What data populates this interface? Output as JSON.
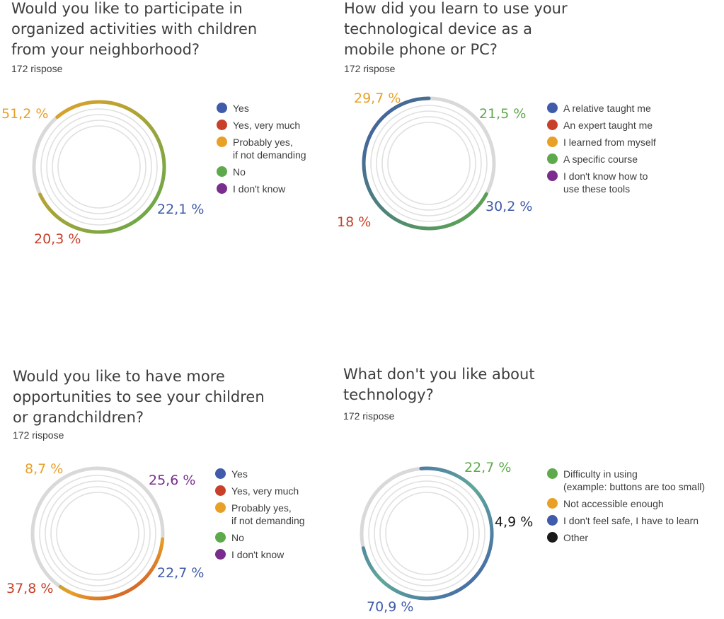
{
  "colors": {
    "blue": "#3f5ba9",
    "red": "#c8402a",
    "orange": "#e8a027",
    "green": "#5ea94b",
    "purple": "#7b2d8e",
    "black": "#1a1a1a",
    "track": "#d9d9d9"
  },
  "chart_data": [
    {
      "type": "pie",
      "title": "Would you like to participate in\norganized activities with children\nfrom your neighborhood?",
      "subtitle": "172 rispose",
      "legend": [
        "Yes",
        "Yes, very much",
        "Probably yes,\nif not demanding",
        "No",
        "I don't know"
      ],
      "legend_colors": [
        "blue",
        "red",
        "orange",
        "green",
        "purple"
      ],
      "value_labels": [
        {
          "text": "51,2 %",
          "color": "orange"
        },
        {
          "text": "22,1 %",
          "color": "blue"
        },
        {
          "text": "20,3 %",
          "color": "red"
        }
      ],
      "values": [
        22.1,
        20.3,
        51.2,
        0,
        0
      ],
      "arc": {
        "from_deg": -40,
        "to_deg": 245,
        "colors": [
          "orange",
          "green"
        ]
      }
    },
    {
      "type": "pie",
      "title": "How did you learn to use your\ntechnological device as a\nmobile phone or PC?",
      "subtitle": "172 rispose",
      "legend": [
        "A relative taught me",
        "An expert taught me",
        "I learned from myself",
        "A specific course",
        "I don't know how to\nuse these tools"
      ],
      "legend_colors": [
        "blue",
        "red",
        "orange",
        "green",
        "purple"
      ],
      "value_labels": [
        {
          "text": "29,7 %",
          "color": "orange"
        },
        {
          "text": "21,5 %",
          "color": "green"
        },
        {
          "text": "30,2 %",
          "color": "blue"
        },
        {
          "text": "18 %",
          "color": "red"
        }
      ],
      "values": [
        30.2,
        18,
        29.7,
        21.5,
        0
      ],
      "arc": {
        "from_deg": 118,
        "to_deg": 0,
        "colors": [
          "blue",
          "green"
        ]
      }
    },
    {
      "type": "pie",
      "title": "Would you like to have more\nopportunities to see your children\nor grandchildren?",
      "subtitle": "172 rispose",
      "legend": [
        "Yes",
        "Yes, very much",
        "Probably yes,\nif not demanding",
        "No",
        "I don't know"
      ],
      "legend_colors": [
        "blue",
        "red",
        "orange",
        "green",
        "purple"
      ],
      "value_labels": [
        {
          "text": "8,7 %",
          "color": "orange"
        },
        {
          "text": "25,6 %",
          "color": "purple"
        },
        {
          "text": "22,7 %",
          "color": "blue"
        },
        {
          "text": "37,8 %",
          "color": "red"
        }
      ],
      "values": [
        22.7,
        37.8,
        8.7,
        0,
        25.6
      ],
      "arc": {
        "from_deg": 95,
        "to_deg": 215,
        "colors": [
          "green",
          "orange",
          "red"
        ]
      }
    },
    {
      "type": "pie",
      "title": "What don't you like about\ntechnology?",
      "subtitle": "172 rispose",
      "legend": [
        "Difficulty in using\n(example: buttons are too small)",
        "Not accessible enough",
        "I don't feel safe, I have to learn",
        "Other"
      ],
      "legend_colors": [
        "green",
        "orange",
        "blue",
        "black"
      ],
      "value_labels": [
        {
          "text": "22,7 %",
          "color": "green"
        },
        {
          "text": "4,9 %",
          "color": "black"
        },
        {
          "text": "70,9 %",
          "color": "blue"
        }
      ],
      "values": [
        22.7,
        0,
        70.9,
        4.9
      ],
      "arc": {
        "from_deg": -5,
        "to_deg": 257,
        "colors": [
          "blue",
          "teal",
          "blue"
        ]
      }
    }
  ]
}
